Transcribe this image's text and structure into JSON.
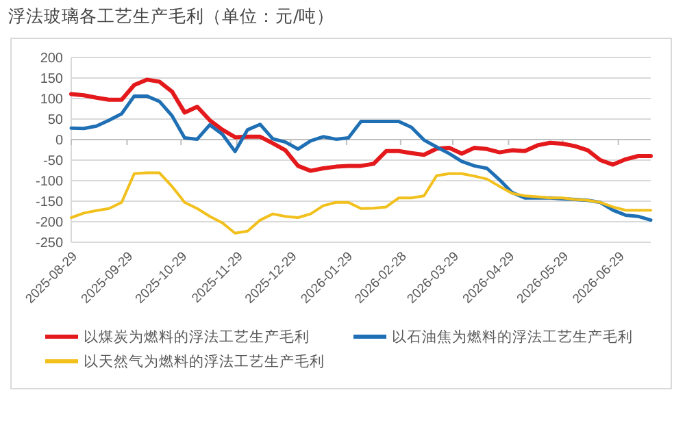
{
  "chart_data": {
    "type": "line",
    "title": "浮法玻璃各工艺生产毛利（单位：元/吨）",
    "x": [
      "2025-08-29",
      "2025-09-05",
      "2025-09-12",
      "2025-09-19",
      "2025-09-26",
      "2025-10-03",
      "2025-10-10",
      "2025-10-17",
      "2025-10-24",
      "2025-10-31",
      "2025-11-07",
      "2025-11-14",
      "2025-11-21",
      "2025-11-28",
      "2025-12-05",
      "2025-12-12",
      "2025-12-19",
      "2025-12-26",
      "2026-01-02",
      "2026-01-09",
      "2026-01-16",
      "2026-01-23",
      "2026-01-30",
      "2026-02-06",
      "2026-02-13",
      "2026-02-20",
      "2026-02-27",
      "2026-03-06",
      "2026-03-13",
      "2026-03-20",
      "2026-03-27",
      "2026-04-03",
      "2026-04-10",
      "2026-04-17",
      "2026-04-24",
      "2026-05-01",
      "2026-05-08",
      "2026-05-15",
      "2026-05-22",
      "2026-05-29",
      "2026-06-05",
      "2026-06-12",
      "2026-06-19",
      "2026-06-26",
      "2026-07-03",
      "2026-07-10",
      "2026-07-17"
    ],
    "series": [
      {
        "name": "以煤炭为燃料的浮法工艺生产毛利",
        "color": "#e3191c",
        "values": [
          111,
          108,
          102,
          97,
          97,
          133,
          146,
          141,
          117,
          66,
          80,
          47,
          24,
          6,
          7,
          7,
          -9,
          -26,
          -64,
          -76,
          -70,
          -66,
          -64,
          -64,
          -59,
          -28,
          -28,
          -33,
          -37,
          -22,
          -20,
          -34,
          -20,
          -23,
          -31,
          -26,
          -28,
          -14,
          -8,
          -10,
          -16,
          -26,
          -50,
          -61,
          -48,
          -40,
          -40
        ]
      },
      {
        "name": "以石油焦为燃料的浮法工艺生产毛利",
        "color": "#1f6fb4",
        "values": [
          28,
          27,
          33,
          47,
          63,
          106,
          106,
          93,
          58,
          4,
          1,
          36,
          13,
          -29,
          24,
          37,
          2,
          -6,
          -23,
          -3,
          7,
          1,
          4,
          44,
          44,
          44,
          44,
          30,
          -1,
          -18,
          -34,
          -53,
          -64,
          -70,
          -98,
          -129,
          -142,
          -142,
          -142,
          -144,
          -146,
          -148,
          -153,
          -172,
          -184,
          -187,
          -196
        ]
      },
      {
        "name": "以天然气为燃料的浮法工艺生产毛利",
        "color": "#f2c01d",
        "values": [
          -190,
          -179,
          -173,
          -168,
          -153,
          -83,
          -81,
          -81,
          -114,
          -153,
          -168,
          -187,
          -203,
          -228,
          -223,
          -196,
          -181,
          -187,
          -190,
          -181,
          -161,
          -153,
          -153,
          -168,
          -167,
          -164,
          -142,
          -142,
          -137,
          -88,
          -83,
          -83,
          -89,
          -96,
          -114,
          -131,
          -137,
          -139,
          -142,
          -142,
          -146,
          -148,
          -153,
          -164,
          -172,
          -172,
          -172
        ]
      }
    ],
    "xlim": [
      "2025-08-29",
      "2026-07-17"
    ],
    "xticks": [
      "2025-08-29",
      "2025-09-29",
      "2025-10-29",
      "2025-11-29",
      "2025-12-29",
      "2026-01-29",
      "2026-02-28",
      "2026-03-29",
      "2026-04-29",
      "2026-05-29",
      "2026-06-29"
    ],
    "ylim": [
      -250,
      200
    ],
    "yticks": [
      -250,
      -200,
      -150,
      -100,
      -50,
      0,
      50,
      100,
      150,
      200
    ],
    "grid": "y",
    "legend": "bottom",
    "marker": "none",
    "line_style": "solid"
  }
}
